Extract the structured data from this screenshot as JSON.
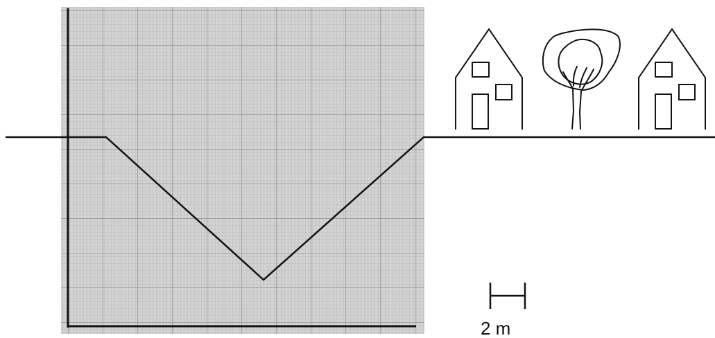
{
  "colors": {
    "background": "#ffffff",
    "grid_paper": "#d3d3d3",
    "grid_fine": "#b4b4b4",
    "grid_major": "#8f8f8f",
    "ink": "#111111"
  },
  "icons": [
    "house-icon",
    "tree-icon",
    "house-icon"
  ],
  "scale_bar": {
    "label": "2 m"
  }
}
